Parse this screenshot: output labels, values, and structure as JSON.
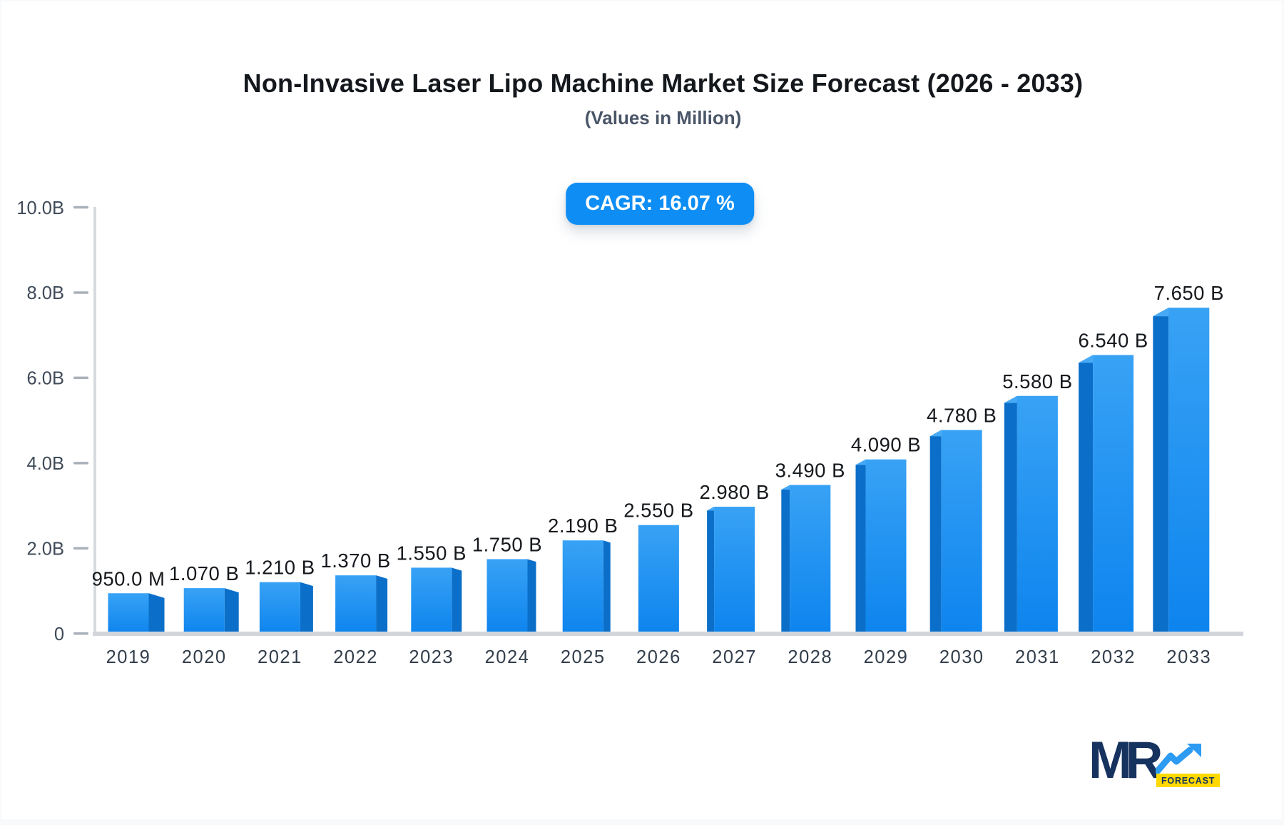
{
  "header": {
    "title": "Non-Invasive Laser Lipo Machine Market Size Forecast (2026 - 2033)",
    "subtitle": "(Values in Million)",
    "cagr_label": "CAGR: 16.07 %"
  },
  "chart_data": {
    "type": "bar",
    "title": "Non-Invasive Laser Lipo Machine Market Size Forecast (2026 - 2033)",
    "subtitle": "(Values in Million)",
    "categories": [
      "2019",
      "2020",
      "2021",
      "2022",
      "2023",
      "2024",
      "2025",
      "2026",
      "2027",
      "2028",
      "2029",
      "2030",
      "2031",
      "2032",
      "2033"
    ],
    "values_billion": [
      0.95,
      1.07,
      1.21,
      1.37,
      1.55,
      1.75,
      2.19,
      2.55,
      2.98,
      3.49,
      4.09,
      4.78,
      5.58,
      6.54,
      7.65
    ],
    "value_labels": [
      "950.0 M",
      "1.070 B",
      "1.210 B",
      "1.370 B",
      "1.550 B",
      "1.750 B",
      "2.190 B",
      "2.550 B",
      "2.980 B",
      "3.490 B",
      "4.090 B",
      "4.780 B",
      "5.580 B",
      "6.540 B",
      "7.650 B"
    ],
    "xlabel": "",
    "ylabel": "",
    "grid": false,
    "legend": false,
    "yaxis": {
      "min": 0,
      "max": 10,
      "ticks": [
        {
          "label": "10.0B",
          "value": 10
        },
        {
          "label": "8.0B",
          "value": 8
        },
        {
          "label": "6.0B",
          "value": 6
        },
        {
          "label": "4.0B",
          "value": 4
        },
        {
          "label": "2.0B",
          "value": 2
        },
        {
          "label": "0",
          "value": 0
        }
      ]
    },
    "colors": {
      "bar_front_top": "#38a2f5",
      "bar_front_bottom": "#0d84ee",
      "bar_side": "#0b6fc9",
      "bar_top_face": "#47aaf6",
      "axis_line": "#d7dade",
      "baseline": "#d2d6db",
      "tick_dash": "#a9b0b9",
      "tick_label": "#404b59",
      "year_label": "#333e4c",
      "value_label": "#15181c",
      "badge_bg": "#0e8ef4",
      "badge_text": "#ffffff"
    }
  },
  "logo": {
    "mark": "MR",
    "tagline": "FORECAST"
  }
}
